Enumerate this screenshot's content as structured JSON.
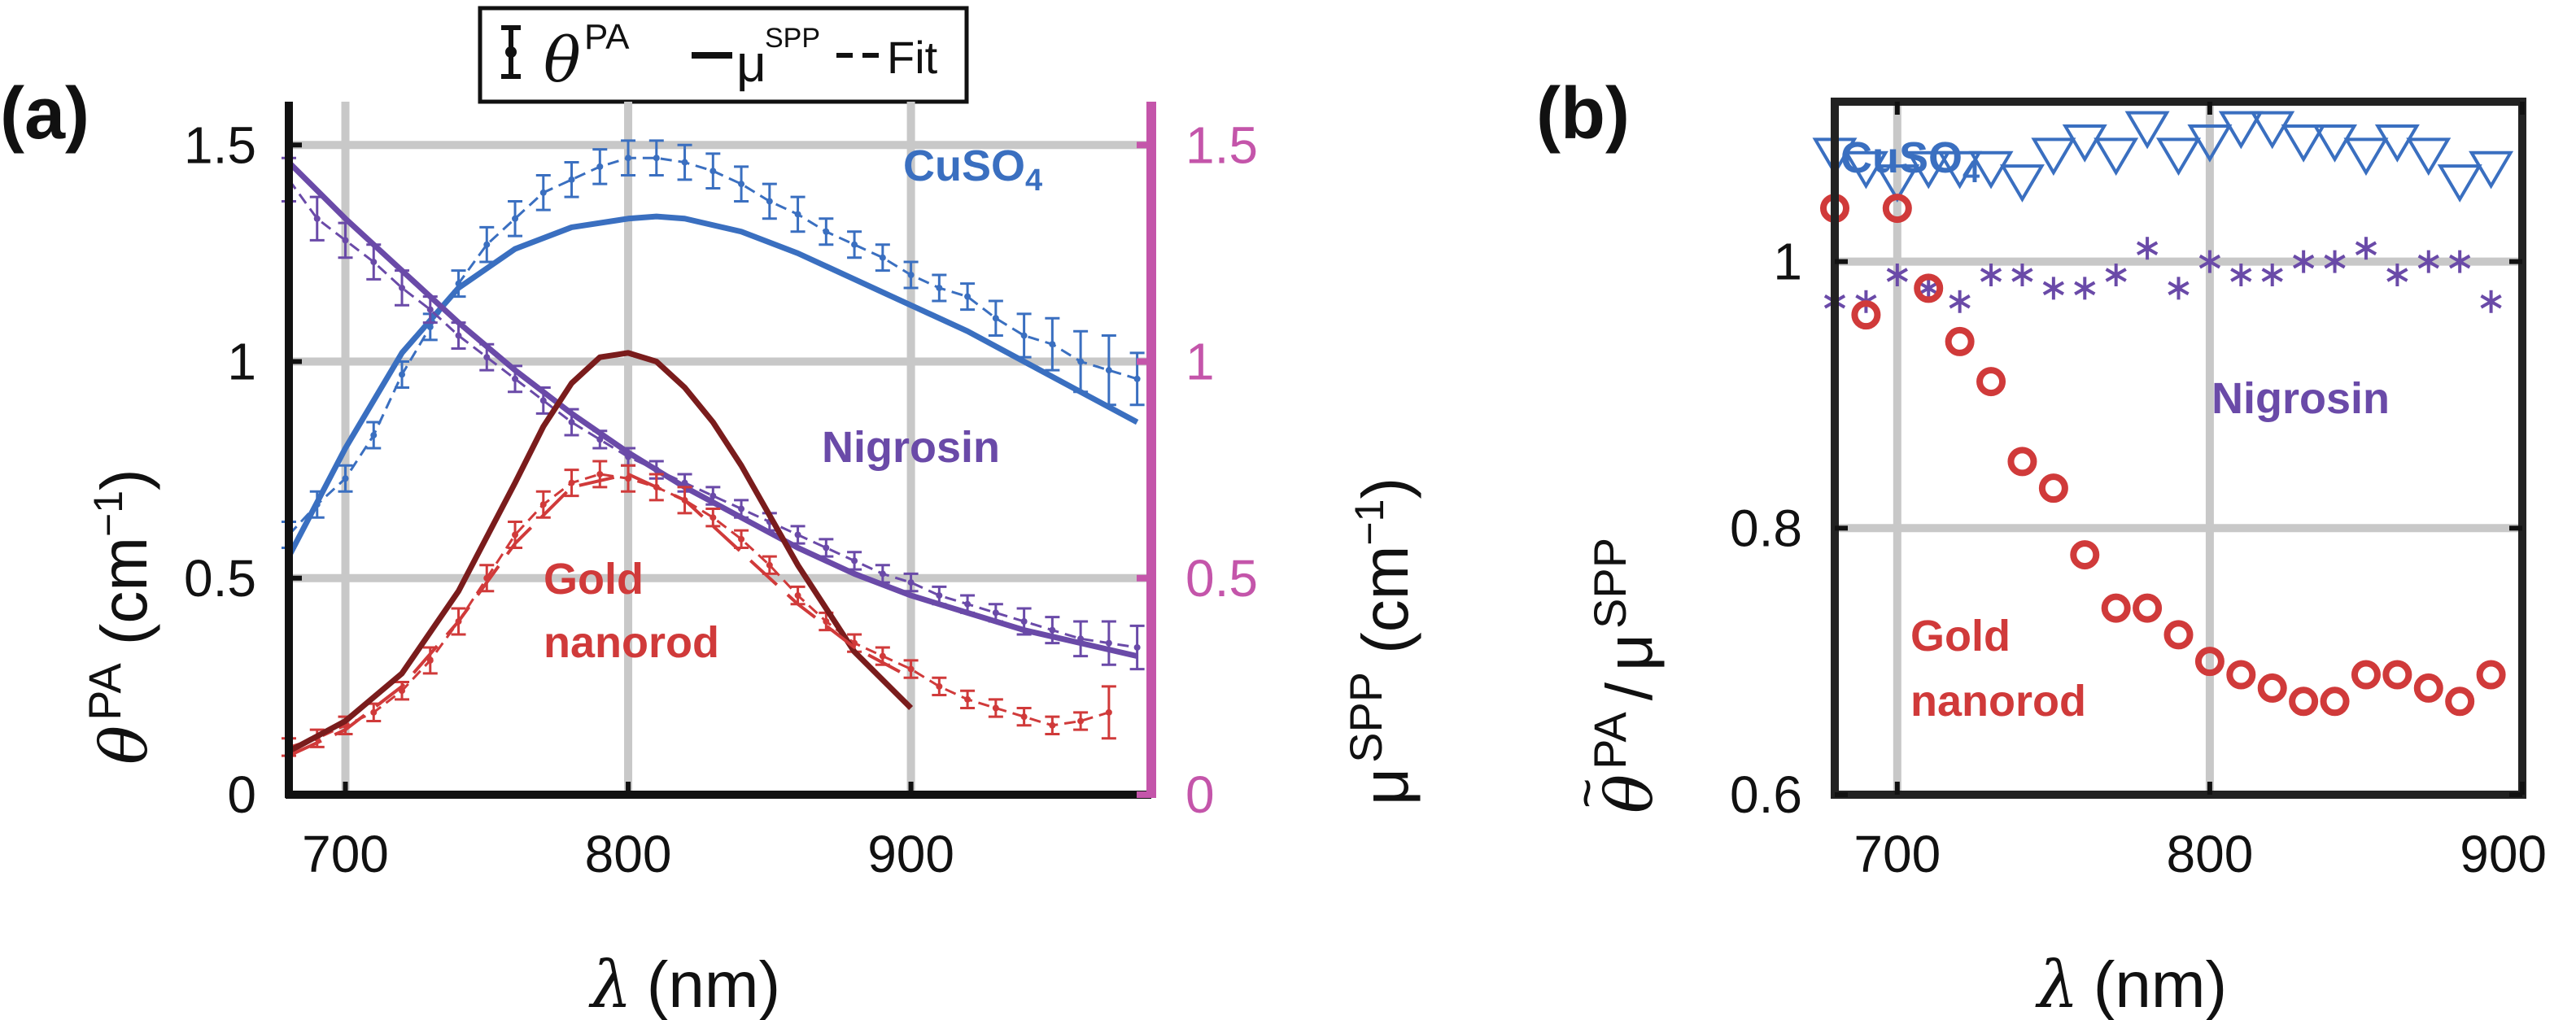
{
  "figure": {
    "legend": {
      "err_label": "θ",
      "err_sup": "PA",
      "line_label": "μ",
      "line_sup": "SPP",
      "fit_label": "Fit"
    },
    "colors": {
      "cuso4": "#3a6fc0",
      "nigrosin": "#6a4aa8",
      "gold": "#d03a3a",
      "gold_dark": "#7a1c1c",
      "right_axis": "#c455aa"
    }
  },
  "chart_data": [
    {
      "panel": "(a)",
      "type": "line",
      "xlabel_sym": "λ",
      "xlabel_unit": "(nm)",
      "ylabel_sym": "θ",
      "ylabel_sup": "PA",
      "ylabel_unit": "(cm",
      "ylabel_exp": "−1",
      "ylabel_close": ")",
      "y2label_sym": "μ",
      "y2label_sup": "SPP",
      "y2label_unit": "(cm",
      "y2label_exp": "−1",
      "y2label_close": ")",
      "xlim": [
        680,
        985
      ],
      "ylim": [
        0,
        1.6
      ],
      "y2lim": [
        0,
        1.6
      ],
      "xticks": [
        "700",
        "800",
        "900"
      ],
      "xtick_values": [
        700,
        800,
        900
      ],
      "yticks": [
        "0",
        "0.5",
        "1",
        "1.5"
      ],
      "ytick_values": [
        0,
        0.5,
        1,
        1.5
      ],
      "y2ticks": [
        "0",
        "0.5",
        "1",
        "1.5"
      ],
      "y2tick_values": [
        0,
        0.5,
        1,
        1.5
      ],
      "grid": true,
      "annotations": {
        "cuso4": "CuSO",
        "cuso4_sub": "4",
        "nigrosin": "Nigrosin",
        "gold_line1": "Gold",
        "gold_line2": "nanorod"
      },
      "series": [
        {
          "name": "CuSO4 θPA",
          "color": "#3a6fc0",
          "style": "errorbar",
          "x": [
            680,
            690,
            700,
            710,
            720,
            730,
            740,
            750,
            760,
            770,
            780,
            790,
            800,
            810,
            820,
            830,
            840,
            850,
            860,
            870,
            880,
            890,
            900,
            910,
            920,
            930,
            940,
            950,
            960,
            970,
            980
          ],
          "y": [
            0.6,
            0.67,
            0.73,
            0.83,
            0.97,
            1.08,
            1.18,
            1.27,
            1.33,
            1.39,
            1.42,
            1.45,
            1.47,
            1.47,
            1.46,
            1.44,
            1.41,
            1.37,
            1.34,
            1.3,
            1.27,
            1.24,
            1.2,
            1.17,
            1.15,
            1.1,
            1.06,
            1.04,
            1.0,
            0.98,
            0.96
          ],
          "err": [
            0.03,
            0.03,
            0.03,
            0.03,
            0.03,
            0.03,
            0.03,
            0.04,
            0.04,
            0.04,
            0.04,
            0.04,
            0.04,
            0.04,
            0.04,
            0.04,
            0.04,
            0.04,
            0.04,
            0.03,
            0.03,
            0.03,
            0.03,
            0.03,
            0.03,
            0.04,
            0.05,
            0.06,
            0.07,
            0.08,
            0.06
          ]
        },
        {
          "name": "CuSO4 μSPP",
          "color": "#3a6fc0",
          "style": "solid",
          "x": [
            680,
            700,
            720,
            740,
            760,
            780,
            800,
            810,
            820,
            840,
            860,
            880,
            900,
            920,
            940,
            960,
            980
          ],
          "y": [
            0.55,
            0.8,
            1.02,
            1.17,
            1.26,
            1.31,
            1.33,
            1.335,
            1.33,
            1.3,
            1.25,
            1.19,
            1.13,
            1.07,
            1.0,
            0.93,
            0.86
          ]
        },
        {
          "name": "Nigrosin θPA",
          "color": "#6a4aa8",
          "style": "errorbar",
          "x": [
            680,
            690,
            700,
            710,
            720,
            730,
            740,
            750,
            760,
            770,
            780,
            790,
            800,
            810,
            820,
            830,
            840,
            850,
            860,
            870,
            880,
            890,
            900,
            910,
            920,
            930,
            940,
            950,
            960,
            970,
            980
          ],
          "y": [
            1.42,
            1.33,
            1.28,
            1.23,
            1.17,
            1.12,
            1.06,
            1.01,
            0.96,
            0.91,
            0.86,
            0.82,
            0.78,
            0.75,
            0.72,
            0.69,
            0.66,
            0.63,
            0.6,
            0.57,
            0.54,
            0.51,
            0.49,
            0.46,
            0.44,
            0.42,
            0.4,
            0.38,
            0.36,
            0.35,
            0.34
          ],
          "err": [
            0.05,
            0.05,
            0.04,
            0.04,
            0.04,
            0.03,
            0.03,
            0.03,
            0.03,
            0.03,
            0.03,
            0.02,
            0.02,
            0.02,
            0.02,
            0.02,
            0.02,
            0.02,
            0.02,
            0.02,
            0.02,
            0.02,
            0.02,
            0.02,
            0.02,
            0.02,
            0.03,
            0.03,
            0.04,
            0.05,
            0.05
          ]
        },
        {
          "name": "Nigrosin μSPP",
          "color": "#6a4aa8",
          "style": "solid",
          "x": [
            680,
            700,
            720,
            740,
            760,
            780,
            800,
            820,
            840,
            860,
            880,
            900,
            920,
            940,
            960,
            980
          ],
          "y": [
            1.46,
            1.33,
            1.21,
            1.09,
            0.98,
            0.88,
            0.79,
            0.71,
            0.64,
            0.57,
            0.51,
            0.46,
            0.42,
            0.38,
            0.35,
            0.32
          ]
        },
        {
          "name": "Gold nanorod θPA",
          "color": "#d03a3a",
          "style": "errorbar",
          "x": [
            680,
            690,
            700,
            710,
            720,
            730,
            740,
            750,
            760,
            770,
            780,
            790,
            800,
            810,
            820,
            830,
            840,
            850,
            860,
            870,
            880,
            890,
            900,
            910,
            920,
            930,
            940,
            950,
            960,
            970
          ],
          "y": [
            0.11,
            0.13,
            0.16,
            0.19,
            0.24,
            0.31,
            0.4,
            0.5,
            0.6,
            0.67,
            0.72,
            0.74,
            0.73,
            0.71,
            0.68,
            0.64,
            0.59,
            0.53,
            0.46,
            0.4,
            0.35,
            0.32,
            0.29,
            0.25,
            0.22,
            0.2,
            0.18,
            0.16,
            0.17,
            0.19
          ],
          "err": [
            0.02,
            0.02,
            0.02,
            0.02,
            0.02,
            0.03,
            0.03,
            0.03,
            0.03,
            0.03,
            0.03,
            0.03,
            0.03,
            0.03,
            0.03,
            0.02,
            0.02,
            0.02,
            0.02,
            0.02,
            0.02,
            0.02,
            0.02,
            0.02,
            0.02,
            0.02,
            0.02,
            0.02,
            0.02,
            0.06
          ]
        },
        {
          "name": "Gold nanorod μSPP",
          "color": "#7a1c1c",
          "style": "solid",
          "x": [
            680,
            700,
            720,
            740,
            760,
            770,
            780,
            790,
            800,
            810,
            820,
            830,
            840,
            860,
            880,
            900
          ],
          "y": [
            0.1,
            0.17,
            0.28,
            0.47,
            0.72,
            0.85,
            0.95,
            1.01,
            1.02,
            1.0,
            0.94,
            0.86,
            0.76,
            0.53,
            0.33,
            0.2
          ]
        },
        {
          "name": "Gold nanorod Fit",
          "color": "#d03a3a",
          "style": "dashed",
          "x": [
            680,
            700,
            720,
            740,
            760,
            780,
            800,
            820,
            840,
            860,
            880,
            900
          ],
          "y": [
            0.09,
            0.15,
            0.25,
            0.4,
            0.58,
            0.71,
            0.74,
            0.68,
            0.56,
            0.44,
            0.34,
            0.27
          ]
        }
      ]
    },
    {
      "panel": "(b)",
      "type": "scatter",
      "xlabel_sym": "λ",
      "xlabel_unit": "(nm)",
      "ylabel_sym": "θ",
      "ylabel_tilde": "~",
      "ylabel_sup": "PA",
      "ylabel_slash": "/",
      "ylabel_mu": "μ",
      "ylabel_mu_sup": "SPP",
      "xlim": [
        680,
        900
      ],
      "ylim": [
        0.6,
        1.12
      ],
      "xticks": [
        "700",
        "800",
        "900"
      ],
      "xtick_values": [
        700,
        800,
        900
      ],
      "yticks": [
        "0.6",
        "0.8",
        "1"
      ],
      "ytick_values": [
        0.6,
        0.8,
        1.0
      ],
      "grid": true,
      "annotations": {
        "cuso4": "CuSO",
        "cuso4_sub": "4",
        "nigrosin": "Nigrosin",
        "gold_line1": "Gold",
        "gold_line2": "nanorod"
      },
      "series": [
        {
          "name": "CuSO4",
          "color": "#3a6fc0",
          "marker": "triangle-down",
          "x": [
            680,
            690,
            700,
            710,
            720,
            730,
            740,
            750,
            760,
            770,
            780,
            790,
            800,
            810,
            820,
            830,
            840,
            850,
            860,
            870,
            880,
            890
          ],
          "y": [
            1.08,
            1.07,
            1.06,
            1.07,
            1.07,
            1.07,
            1.06,
            1.08,
            1.09,
            1.08,
            1.1,
            1.08,
            1.09,
            1.1,
            1.1,
            1.09,
            1.09,
            1.08,
            1.09,
            1.08,
            1.06,
            1.07
          ]
        },
        {
          "name": "Nigrosin",
          "color": "#6a4aa8",
          "marker": "asterisk",
          "x": [
            680,
            690,
            700,
            710,
            720,
            730,
            740,
            750,
            760,
            770,
            780,
            790,
            800,
            810,
            820,
            830,
            840,
            850,
            860,
            870,
            880,
            890
          ],
          "y": [
            0.97,
            0.97,
            0.99,
            0.98,
            0.97,
            0.99,
            0.99,
            0.98,
            0.98,
            0.99,
            1.01,
            0.98,
            1.0,
            0.99,
            0.99,
            1.0,
            1.0,
            1.01,
            0.99,
            1.0,
            1.0,
            0.97
          ]
        },
        {
          "name": "Gold nanorod",
          "color": "#d03a3a",
          "marker": "circle",
          "x": [
            680,
            690,
            700,
            710,
            720,
            730,
            740,
            750,
            760,
            770,
            780,
            790,
            800,
            810,
            820,
            830,
            840,
            850,
            860,
            870,
            880,
            890
          ],
          "y": [
            1.04,
            0.96,
            1.04,
            0.98,
            0.94,
            0.91,
            0.85,
            0.83,
            0.78,
            0.74,
            0.74,
            0.72,
            0.7,
            0.69,
            0.68,
            0.67,
            0.67,
            0.69,
            0.69,
            0.68,
            0.67,
            0.69
          ]
        }
      ]
    }
  ]
}
